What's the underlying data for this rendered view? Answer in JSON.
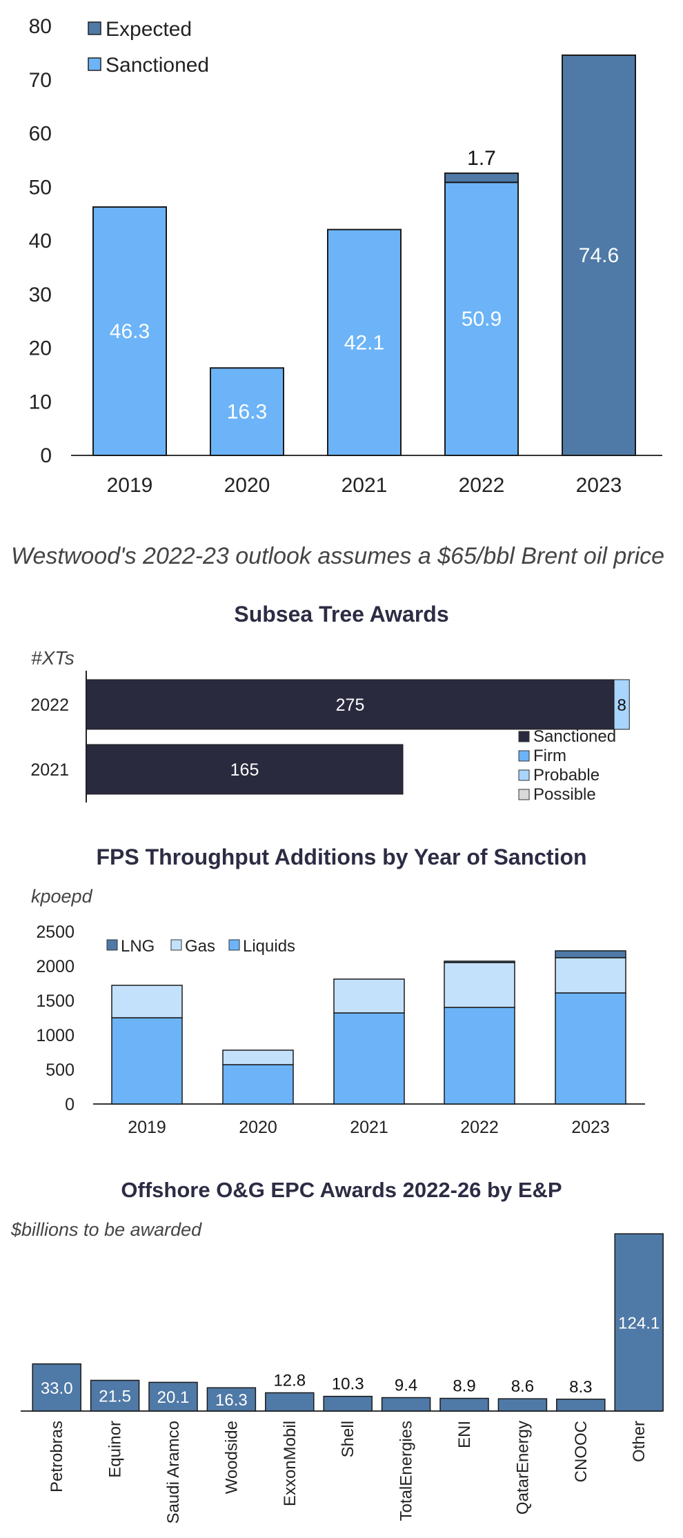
{
  "note": "Westwood's 2022-23 outlook assumes a $65/bbl Brent oil price",
  "chart_data": [
    {
      "type": "bar",
      "stacked": true,
      "categories": [
        "2019",
        "2020",
        "2021",
        "2022",
        "2023"
      ],
      "series": [
        {
          "name": "Sanctioned",
          "values": [
            46.3,
            16.3,
            42.1,
            50.9,
            0
          ],
          "color": "#6cb4f7"
        },
        {
          "name": "Expected",
          "values": [
            0,
            0,
            0,
            1.7,
            74.6
          ],
          "color": "#4f79a6"
        }
      ],
      "ylim": [
        0,
        80
      ],
      "yticks": [
        "0",
        "10",
        "20",
        "30",
        "40",
        "50",
        "60",
        "70",
        "80"
      ],
      "data_labels": [
        "46.3",
        "16.3",
        "42.1",
        "50.9",
        "1.7",
        "74.6"
      ],
      "legend": "top-left"
    },
    {
      "type": "bar",
      "orientation": "horizontal",
      "stacked": true,
      "title": "Subsea Tree Awards",
      "unit": "#XTs",
      "categories": [
        "2022",
        "2021"
      ],
      "series": [
        {
          "name": "Sanctioned",
          "values": [
            275,
            165
          ],
          "color": "#2a2a3f"
        },
        {
          "name": "Firm",
          "values": [
            0,
            0
          ],
          "color": "#6cb4f7"
        },
        {
          "name": "Probable",
          "values": [
            8,
            0
          ],
          "color": "#a9d4fb"
        },
        {
          "name": "Possible",
          "values": [
            0,
            0
          ],
          "color": "#d9d9d9"
        }
      ],
      "data_labels": [
        "275",
        "8",
        "165"
      ],
      "legend": "bottom-right"
    },
    {
      "type": "bar",
      "stacked": true,
      "title": "FPS Throughput Additions by Year of Sanction",
      "unit": "kpoepd",
      "categories": [
        "2019",
        "2020",
        "2021",
        "2022",
        "2023"
      ],
      "series": [
        {
          "name": "Liquids",
          "values": [
            1250,
            570,
            1320,
            1400,
            1610
          ],
          "color": "#6cb4f7"
        },
        {
          "name": "Gas",
          "values": [
            470,
            210,
            490,
            650,
            510
          ],
          "color": "#c4e1fc"
        },
        {
          "name": "LNG",
          "values": [
            0,
            0,
            0,
            20,
            100
          ],
          "color": "#4f79a6"
        }
      ],
      "ylim": [
        0,
        2500
      ],
      "yticks": [
        "0",
        "500",
        "1000",
        "1500",
        "2000",
        "2500"
      ],
      "legend": "top-left"
    },
    {
      "type": "bar",
      "title": "Offshore O&G EPC Awards 2022-26 by E&P",
      "unit": "$billions to be awarded",
      "categories": [
        "Petrobras",
        "Equinor",
        "Saudi Aramco",
        "Woodside",
        "ExxonMobil",
        "Shell",
        "TotalEnergies",
        "ENI",
        "QatarEnergy",
        "CNOOC",
        "Other"
      ],
      "values": [
        33.0,
        21.5,
        20.1,
        16.3,
        12.8,
        10.3,
        9.4,
        8.9,
        8.6,
        8.3,
        124.1
      ],
      "data_labels": [
        "33.0",
        "21.5",
        "20.1",
        "16.3",
        "12.8",
        "10.3",
        "9.4",
        "8.9",
        "8.6",
        "8.3",
        "124.1"
      ],
      "color": "#4f79a6"
    }
  ]
}
